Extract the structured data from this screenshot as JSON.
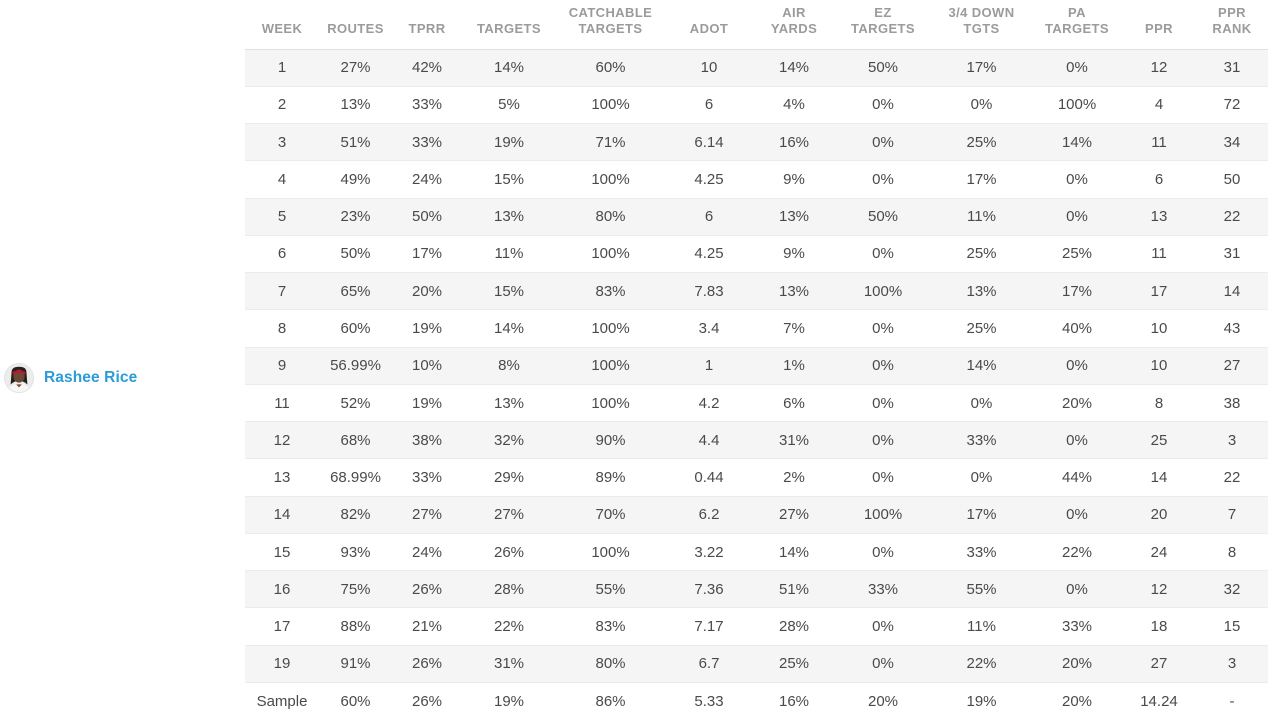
{
  "player": {
    "name": "Rashee Rice",
    "avatar_icon": "player-headshot-icon"
  },
  "table": {
    "columns": [
      "WEEK",
      "ROUTES",
      "TPRR",
      "TARGETS",
      "CATCHABLE\nTARGETS",
      "ADOT",
      "AIR\nYARDS",
      "EZ\nTARGETS",
      "3/4 DOWN\nTGTS",
      "PA\nTARGETS",
      "PPR",
      "PPR\nRANK"
    ],
    "rows": [
      [
        "1",
        "27%",
        "42%",
        "14%",
        "60%",
        "10",
        "14%",
        "50%",
        "17%",
        "0%",
        "12",
        "31"
      ],
      [
        "2",
        "13%",
        "33%",
        "5%",
        "100%",
        "6",
        "4%",
        "0%",
        "0%",
        "100%",
        "4",
        "72"
      ],
      [
        "3",
        "51%",
        "33%",
        "19%",
        "71%",
        "6.14",
        "16%",
        "0%",
        "25%",
        "14%",
        "11",
        "34"
      ],
      [
        "4",
        "49%",
        "24%",
        "15%",
        "100%",
        "4.25",
        "9%",
        "0%",
        "17%",
        "0%",
        "6",
        "50"
      ],
      [
        "5",
        "23%",
        "50%",
        "13%",
        "80%",
        "6",
        "13%",
        "50%",
        "11%",
        "0%",
        "13",
        "22"
      ],
      [
        "6",
        "50%",
        "17%",
        "11%",
        "100%",
        "4.25",
        "9%",
        "0%",
        "25%",
        "25%",
        "11",
        "31"
      ],
      [
        "7",
        "65%",
        "20%",
        "15%",
        "83%",
        "7.83",
        "13%",
        "100%",
        "13%",
        "17%",
        "17",
        "14"
      ],
      [
        "8",
        "60%",
        "19%",
        "14%",
        "100%",
        "3.4",
        "7%",
        "0%",
        "25%",
        "40%",
        "10",
        "43"
      ],
      [
        "9",
        "56.99%",
        "10%",
        "8%",
        "100%",
        "1",
        "1%",
        "0%",
        "14%",
        "0%",
        "10",
        "27"
      ],
      [
        "11",
        "52%",
        "19%",
        "13%",
        "100%",
        "4.2",
        "6%",
        "0%",
        "0%",
        "20%",
        "8",
        "38"
      ],
      [
        "12",
        "68%",
        "38%",
        "32%",
        "90%",
        "4.4",
        "31%",
        "0%",
        "33%",
        "0%",
        "25",
        "3"
      ],
      [
        "13",
        "68.99%",
        "33%",
        "29%",
        "89%",
        "0.44",
        "2%",
        "0%",
        "0%",
        "44%",
        "14",
        "22"
      ],
      [
        "14",
        "82%",
        "27%",
        "27%",
        "70%",
        "6.2",
        "27%",
        "100%",
        "17%",
        "0%",
        "20",
        "7"
      ],
      [
        "15",
        "93%",
        "24%",
        "26%",
        "100%",
        "3.22",
        "14%",
        "0%",
        "33%",
        "22%",
        "24",
        "8"
      ],
      [
        "16",
        "75%",
        "26%",
        "28%",
        "55%",
        "7.36",
        "51%",
        "33%",
        "55%",
        "0%",
        "12",
        "32"
      ],
      [
        "17",
        "88%",
        "21%",
        "22%",
        "83%",
        "7.17",
        "28%",
        "0%",
        "11%",
        "33%",
        "18",
        "15"
      ],
      [
        "19",
        "91%",
        "26%",
        "31%",
        "80%",
        "6.7",
        "25%",
        "0%",
        "22%",
        "20%",
        "27",
        "3"
      ],
      [
        "Sample",
        "60%",
        "26%",
        "19%",
        "86%",
        "5.33",
        "16%",
        "20%",
        "19%",
        "20%",
        "14.24",
        "-"
      ]
    ]
  },
  "colors": {
    "link_blue": "#2b9cd8",
    "row_stripe": "#f5f5f5",
    "header_text": "#9b9b9b",
    "cell_text": "#4a4a4a",
    "border": "#ebebeb"
  }
}
